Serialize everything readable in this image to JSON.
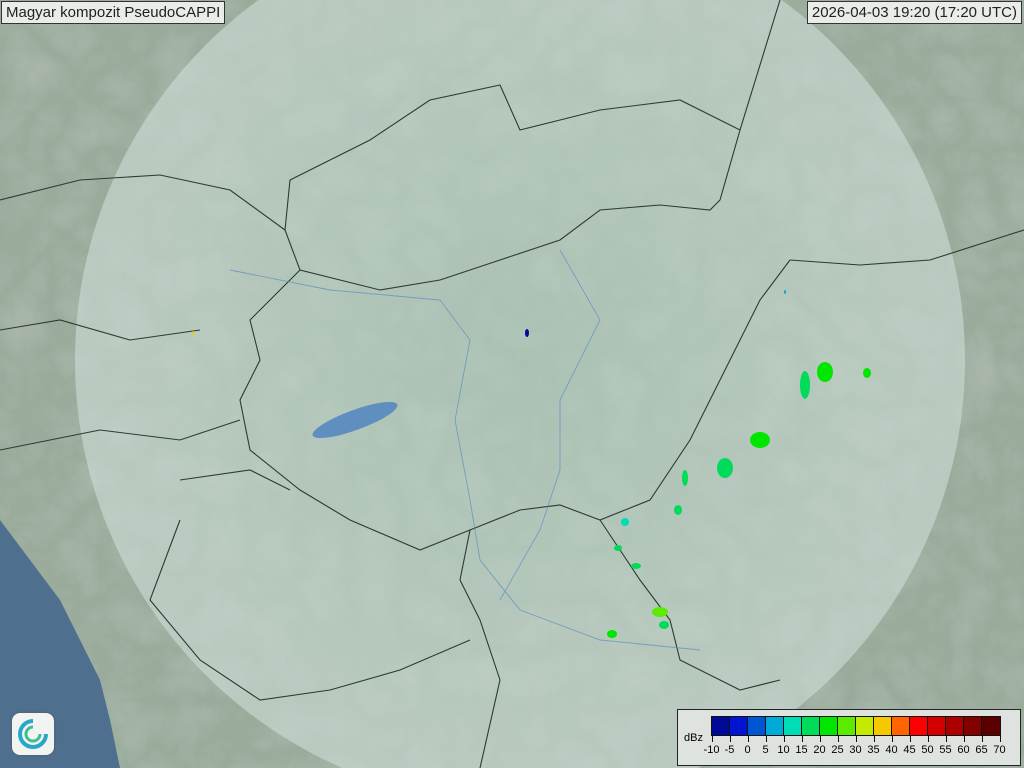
{
  "header": {
    "title": "Magyar kompozit  PseudoCAPPI",
    "timestamp": "2026-04-03 19:20 (17:20 UTC)"
  },
  "legend": {
    "unit": "dBz",
    "ticks": [
      "-10",
      "-5",
      "0",
      "5",
      "10",
      "15",
      "20",
      "25",
      "30",
      "35",
      "40",
      "45",
      "50",
      "55",
      "60",
      "65",
      "70"
    ],
    "colors": [
      "#000a96",
      "#0014d2",
      "#0055d2",
      "#00aad7",
      "#00dcb4",
      "#00dc5a",
      "#00e600",
      "#5aeb00",
      "#c3eb00",
      "#f5c800",
      "#ff6400",
      "#ff0000",
      "#d20000",
      "#aa0000",
      "#820000",
      "#5a0000"
    ]
  },
  "map": {
    "land_color": "#9bae9e",
    "radar_coverage_color": "#c8dcd2",
    "border_color": "#2d3a32",
    "sea_color": "#4c6c8c",
    "logo_icon": "met-service-swirl-logo"
  }
}
